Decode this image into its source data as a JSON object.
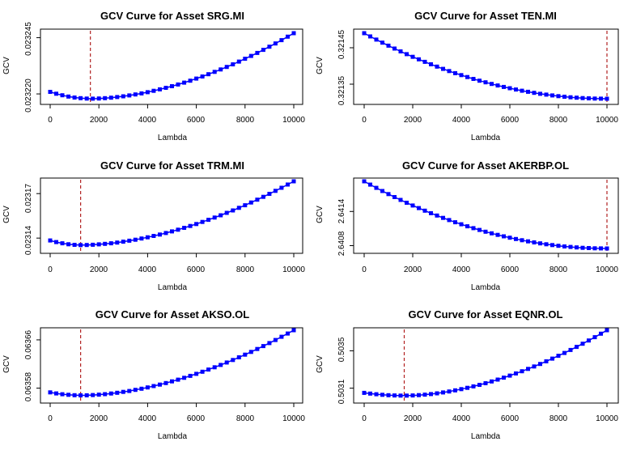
{
  "figure": {
    "charts": [
      {
        "title": "GCV Curve for Asset SRG.MI",
        "xlabel": "Lambda",
        "ylabel": "GCV",
        "xticks": [
          "0",
          "2000",
          "4000",
          "6000",
          "8000",
          "10000"
        ],
        "yticks": [
          "0.023220",
          "0.023245"
        ]
      },
      {
        "title": "GCV Curve for Asset TEN.MI",
        "xlabel": "Lambda",
        "ylabel": "GCV",
        "xticks": [
          "0",
          "2000",
          "4000",
          "6000",
          "8000",
          "10000"
        ],
        "yticks": [
          "0.32135",
          "0.32145"
        ]
      },
      {
        "title": "GCV Curve for Asset TRM.MI",
        "xlabel": "Lambda",
        "ylabel": "GCV",
        "xticks": [
          "0",
          "2000",
          "4000",
          "6000",
          "8000",
          "10000"
        ],
        "yticks": [
          "0.02314",
          "0.02317"
        ]
      },
      {
        "title": "GCV Curve for Asset AKERBP.OL",
        "xlabel": "Lambda",
        "ylabel": "GCV",
        "xticks": [
          "0",
          "2000",
          "4000",
          "6000",
          "8000",
          "10000"
        ],
        "yticks": [
          "2.6408",
          "2.6414"
        ]
      },
      {
        "title": "GCV Curve for Asset AKSO.OL",
        "xlabel": "Lambda",
        "ylabel": "GCV",
        "xticks": [
          "0",
          "2000",
          "4000",
          "6000",
          "8000",
          "10000"
        ],
        "yticks": [
          "0.06358",
          "0.06366"
        ]
      },
      {
        "title": "GCV Curve for Asset EQNR.OL",
        "xlabel": "Lambda",
        "ylabel": "GCV",
        "xticks": [
          "0",
          "2000",
          "4000",
          "6000",
          "8000",
          "10000"
        ],
        "yticks": [
          "0.5031",
          "0.5035"
        ]
      }
    ]
  },
  "colors": {
    "series": "#0000ff",
    "vline": "#b22222",
    "axis": "#000000"
  },
  "chart_data": [
    {
      "type": "scatter",
      "title": "GCV Curve for Asset SRG.MI",
      "xlabel": "Lambda",
      "ylabel": "GCV",
      "xlim": [
        0,
        10000
      ],
      "ylim": [
        0.0232175,
        0.023247
      ],
      "x_step": 250,
      "xmin": 0,
      "xmax": 10000,
      "curve": {
        "y0": 0.0232209,
        "ymin": 0.0232179,
        "xmin": 1700,
        "yend": 0.023247
      },
      "vline_x": 1650,
      "yticks": [
        0.02322,
        0.023245
      ],
      "xticks": [
        0,
        2000,
        4000,
        6000,
        8000,
        10000
      ]
    },
    {
      "type": "scatter",
      "title": "GCV Curve for Asset TEN.MI",
      "xlabel": "Lambda",
      "ylabel": "GCV",
      "xlim": [
        0,
        10000
      ],
      "ylim": [
        0.32131,
        0.32149
      ],
      "x_step": 250,
      "xmin": 0,
      "xmax": 10000,
      "curve": {
        "y0": 0.32149,
        "ymin": 0.32131,
        "xmin": 10000,
        "yend": 0.32131
      },
      "vline_x": 10000,
      "yticks": [
        0.32135,
        0.32145
      ],
      "xticks": [
        0,
        2000,
        4000,
        6000,
        8000,
        10000
      ]
    },
    {
      "type": "scatter",
      "title": "GCV Curve for Asset TRM.MI",
      "xlabel": "Lambda",
      "ylabel": "GCV",
      "xlim": [
        0,
        10000
      ],
      "ylim": [
        0.023133,
        0.0231783
      ],
      "x_step": 250,
      "xmin": 0,
      "xmax": 10000,
      "curve": {
        "y0": 0.0231384,
        "ymin": 0.0231353,
        "xmin": 1300,
        "yend": 0.0231783
      },
      "vline_x": 1250,
      "yticks": [
        0.02314,
        0.02317
      ],
      "xticks": [
        0,
        2000,
        4000,
        6000,
        8000,
        10000
      ]
    },
    {
      "type": "scatter",
      "title": "GCV Curve for Asset AKERBP.OL",
      "xlabel": "Lambda",
      "ylabel": "GCV",
      "xlim": [
        0,
        10000
      ],
      "ylim": [
        2.64075,
        2.64193
      ],
      "x_step": 250,
      "xmin": 0,
      "xmax": 10000,
      "curve": {
        "y0": 2.64193,
        "ymin": 2.64075,
        "xmin": 10000,
        "yend": 2.64075
      },
      "vline_x": 10000,
      "yticks": [
        2.6408,
        2.6414
      ],
      "xticks": [
        0,
        2000,
        4000,
        6000,
        8000,
        10000
      ]
    },
    {
      "type": "scatter",
      "title": "GCV Curve for Asset AKSO.OL",
      "xlabel": "Lambda",
      "ylabel": "GCV",
      "xlim": [
        0,
        10000
      ],
      "ylim": [
        0.063566,
        0.063676
      ],
      "x_step": 250,
      "xmin": 0,
      "xmax": 10000,
      "curve": {
        "y0": 0.063573,
        "ymin": 0.063568,
        "xmin": 1300,
        "yend": 0.063676
      },
      "vline_x": 1250,
      "yticks": [
        0.06358,
        0.06366
      ],
      "xticks": [
        0,
        2000,
        4000,
        6000,
        8000,
        10000
      ]
    },
    {
      "type": "scatter",
      "title": "GCV Curve for Asset EQNR.OL",
      "xlabel": "Lambda",
      "ylabel": "GCV",
      "xlim": [
        0,
        10000
      ],
      "ylim": [
        0.50301,
        0.50372
      ],
      "x_step": 250,
      "xmin": 0,
      "xmax": 10000,
      "curve": {
        "y0": 0.50305,
        "ymin": 0.50302,
        "xmin": 1700,
        "yend": 0.50372
      },
      "vline_x": 1650,
      "yticks": [
        0.5031,
        0.5035
      ],
      "xticks": [
        0,
        2000,
        4000,
        6000,
        8000,
        10000
      ]
    }
  ]
}
